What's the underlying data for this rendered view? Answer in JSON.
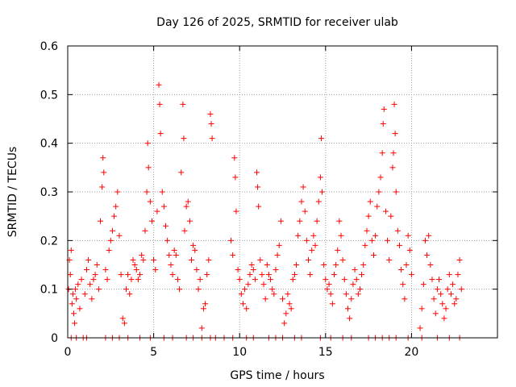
{
  "chart_data": {
    "type": "scatter",
    "title": "Day 126 of 2025, SRMTID for receiver ulab",
    "xlabel": "GPS time / hours",
    "ylabel": "SRMTID / TECUs",
    "xlim": [
      0,
      25
    ],
    "ylim": [
      0,
      0.6
    ],
    "x_ticks": [
      0,
      5,
      10,
      15,
      20
    ],
    "x_tick_labels": [
      "0",
      "5",
      "10",
      "15",
      "20"
    ],
    "y_ticks": [
      0,
      0.1,
      0.2,
      0.3,
      0.4,
      0.5,
      0.6
    ],
    "y_tick_labels": [
      "0",
      "0.1",
      "0.2",
      "0.3",
      "0.4",
      "0.5",
      "0.6"
    ],
    "grid": true,
    "marker": "plus",
    "color": "#ff0000",
    "series": [
      {
        "name": "SRMTID",
        "points": [
          [
            0.05,
            0.1
          ],
          [
            0.1,
            0.16
          ],
          [
            0.15,
            0.13
          ],
          [
            0.2,
            0.18
          ],
          [
            0.25,
            0.07
          ],
          [
            0.3,
            0.09
          ],
          [
            0.35,
            0.05
          ],
          [
            0.4,
            0.03
          ],
          [
            0.45,
            0.1
          ],
          [
            0.5,
            0.08
          ],
          [
            0.6,
            0.11
          ],
          [
            0.7,
            0.06
          ],
          [
            0.8,
            0.12
          ],
          [
            1.0,
            0.09
          ],
          [
            1.1,
            0.14
          ],
          [
            1.2,
            0.16
          ],
          [
            1.3,
            0.11
          ],
          [
            1.4,
            0.08
          ],
          [
            1.5,
            0.12
          ],
          [
            1.6,
            0.13
          ],
          [
            1.7,
            0.15
          ],
          [
            1.8,
            0.1
          ],
          [
            1.9,
            0.24
          ],
          [
            2.0,
            0.31
          ],
          [
            2.05,
            0.37
          ],
          [
            2.1,
            0.34
          ],
          [
            2.2,
            0.14
          ],
          [
            2.3,
            0.12
          ],
          [
            2.4,
            0.18
          ],
          [
            2.5,
            0.2
          ],
          [
            2.6,
            0.22
          ],
          [
            2.7,
            0.25
          ],
          [
            2.8,
            0.27
          ],
          [
            2.9,
            0.3
          ],
          [
            3.0,
            0.21
          ],
          [
            3.1,
            0.13
          ],
          [
            3.2,
            0.04
          ],
          [
            3.3,
            0.03
          ],
          [
            3.4,
            0.1
          ],
          [
            3.5,
            0.13
          ],
          [
            3.6,
            0.09
          ],
          [
            3.7,
            0.12
          ],
          [
            3.8,
            0.16
          ],
          [
            3.9,
            0.15
          ],
          [
            4.0,
            0.14
          ],
          [
            4.1,
            0.12
          ],
          [
            4.2,
            0.13
          ],
          [
            4.3,
            0.17
          ],
          [
            4.4,
            0.16
          ],
          [
            4.5,
            0.22
          ],
          [
            4.6,
            0.3
          ],
          [
            4.65,
            0.4
          ],
          [
            4.7,
            0.35
          ],
          [
            4.8,
            0.28
          ],
          [
            4.9,
            0.24
          ],
          [
            5.0,
            0.16
          ],
          [
            5.1,
            0.14
          ],
          [
            5.2,
            0.26
          ],
          [
            5.3,
            0.52
          ],
          [
            5.35,
            0.48
          ],
          [
            5.4,
            0.42
          ],
          [
            5.5,
            0.3
          ],
          [
            5.6,
            0.27
          ],
          [
            5.7,
            0.23
          ],
          [
            5.8,
            0.2
          ],
          [
            5.9,
            0.17
          ],
          [
            6.0,
            0.15
          ],
          [
            6.1,
            0.13
          ],
          [
            6.2,
            0.18
          ],
          [
            6.3,
            0.17
          ],
          [
            6.4,
            0.12
          ],
          [
            6.5,
            0.1
          ],
          [
            6.6,
            0.34
          ],
          [
            6.7,
            0.48
          ],
          [
            6.75,
            0.41
          ],
          [
            6.8,
            0.22
          ],
          [
            6.9,
            0.27
          ],
          [
            7.0,
            0.28
          ],
          [
            7.1,
            0.24
          ],
          [
            7.2,
            0.16
          ],
          [
            7.3,
            0.19
          ],
          [
            7.4,
            0.18
          ],
          [
            7.5,
            0.14
          ],
          [
            7.6,
            0.1
          ],
          [
            7.7,
            0.12
          ],
          [
            7.8,
            0.02
          ],
          [
            7.9,
            0.06
          ],
          [
            8.0,
            0.07
          ],
          [
            8.1,
            0.13
          ],
          [
            8.2,
            0.16
          ],
          [
            8.3,
            0.46
          ],
          [
            8.35,
            0.44
          ],
          [
            8.4,
            0.41
          ],
          [
            9.5,
            0.2
          ],
          [
            9.6,
            0.17
          ],
          [
            9.7,
            0.37
          ],
          [
            9.75,
            0.33
          ],
          [
            9.8,
            0.26
          ],
          [
            9.9,
            0.14
          ],
          [
            10.0,
            0.12
          ],
          [
            10.1,
            0.09
          ],
          [
            10.2,
            0.07
          ],
          [
            10.3,
            0.1
          ],
          [
            10.4,
            0.06
          ],
          [
            10.5,
            0.11
          ],
          [
            10.6,
            0.13
          ],
          [
            10.7,
            0.15
          ],
          [
            10.8,
            0.14
          ],
          [
            10.9,
            0.12
          ],
          [
            11.0,
            0.34
          ],
          [
            11.05,
            0.31
          ],
          [
            11.1,
            0.27
          ],
          [
            11.2,
            0.16
          ],
          [
            11.3,
            0.13
          ],
          [
            11.4,
            0.11
          ],
          [
            11.5,
            0.08
          ],
          [
            11.6,
            0.15
          ],
          [
            11.7,
            0.13
          ],
          [
            11.8,
            0.12
          ],
          [
            11.9,
            0.1
          ],
          [
            12.0,
            0.09
          ],
          [
            12.1,
            0.14
          ],
          [
            12.2,
            0.17
          ],
          [
            12.3,
            0.19
          ],
          [
            12.4,
            0.24
          ],
          [
            12.5,
            0.08
          ],
          [
            12.6,
            0.03
          ],
          [
            12.7,
            0.05
          ],
          [
            12.8,
            0.09
          ],
          [
            12.9,
            0.07
          ],
          [
            13.0,
            0.06
          ],
          [
            13.1,
            0.12
          ],
          [
            13.2,
            0.13
          ],
          [
            13.3,
            0.15
          ],
          [
            13.4,
            0.21
          ],
          [
            13.5,
            0.24
          ],
          [
            13.6,
            0.28
          ],
          [
            13.7,
            0.31
          ],
          [
            13.8,
            0.26
          ],
          [
            13.9,
            0.2
          ],
          [
            14.0,
            0.16
          ],
          [
            14.1,
            0.13
          ],
          [
            14.2,
            0.18
          ],
          [
            14.3,
            0.21
          ],
          [
            14.4,
            0.19
          ],
          [
            14.5,
            0.24
          ],
          [
            14.6,
            0.28
          ],
          [
            14.7,
            0.33
          ],
          [
            14.75,
            0.41
          ],
          [
            14.8,
            0.3
          ],
          [
            14.9,
            0.15
          ],
          [
            15.0,
            0.12
          ],
          [
            15.1,
            0.1
          ],
          [
            15.2,
            0.11
          ],
          [
            15.3,
            0.09
          ],
          [
            15.4,
            0.07
          ],
          [
            15.5,
            0.13
          ],
          [
            15.6,
            0.15
          ],
          [
            15.7,
            0.18
          ],
          [
            15.8,
            0.24
          ],
          [
            15.9,
            0.21
          ],
          [
            16.0,
            0.16
          ],
          [
            16.1,
            0.12
          ],
          [
            16.2,
            0.09
          ],
          [
            16.3,
            0.06
          ],
          [
            16.4,
            0.04
          ],
          [
            16.5,
            0.08
          ],
          [
            16.6,
            0.11
          ],
          [
            16.7,
            0.14
          ],
          [
            16.8,
            0.12
          ],
          [
            16.9,
            0.09
          ],
          [
            17.0,
            0.1
          ],
          [
            17.1,
            0.13
          ],
          [
            17.2,
            0.15
          ],
          [
            17.3,
            0.19
          ],
          [
            17.4,
            0.22
          ],
          [
            17.5,
            0.25
          ],
          [
            17.6,
            0.28
          ],
          [
            17.7,
            0.2
          ],
          [
            17.8,
            0.17
          ],
          [
            17.9,
            0.21
          ],
          [
            18.0,
            0.27
          ],
          [
            18.1,
            0.3
          ],
          [
            18.2,
            0.33
          ],
          [
            18.3,
            0.38
          ],
          [
            18.35,
            0.44
          ],
          [
            18.4,
            0.47
          ],
          [
            18.5,
            0.26
          ],
          [
            18.6,
            0.2
          ],
          [
            18.7,
            0.16
          ],
          [
            18.8,
            0.25
          ],
          [
            18.9,
            0.35
          ],
          [
            18.95,
            0.38
          ],
          [
            19.0,
            0.48
          ],
          [
            19.05,
            0.42
          ],
          [
            19.1,
            0.3
          ],
          [
            19.2,
            0.22
          ],
          [
            19.3,
            0.19
          ],
          [
            19.4,
            0.14
          ],
          [
            19.5,
            0.11
          ],
          [
            19.6,
            0.08
          ],
          [
            19.7,
            0.15
          ],
          [
            19.8,
            0.21
          ],
          [
            19.9,
            0.18
          ],
          [
            20.0,
            0.13
          ],
          [
            20.5,
            0.02
          ],
          [
            20.6,
            0.06
          ],
          [
            20.7,
            0.11
          ],
          [
            20.8,
            0.2
          ],
          [
            20.9,
            0.17
          ],
          [
            21.0,
            0.21
          ],
          [
            21.1,
            0.15
          ],
          [
            21.2,
            0.12
          ],
          [
            21.3,
            0.08
          ],
          [
            21.4,
            0.05
          ],
          [
            21.5,
            0.1
          ],
          [
            21.6,
            0.12
          ],
          [
            21.7,
            0.09
          ],
          [
            21.8,
            0.07
          ],
          [
            21.9,
            0.04
          ],
          [
            22.0,
            0.06
          ],
          [
            22.1,
            0.1
          ],
          [
            22.2,
            0.13
          ],
          [
            22.3,
            0.09
          ],
          [
            22.4,
            0.11
          ],
          [
            22.5,
            0.07
          ],
          [
            22.6,
            0.08
          ],
          [
            22.7,
            0.13
          ],
          [
            22.8,
            0.16
          ],
          [
            22.9,
            0.1
          ],
          [
            0.2,
            0.0
          ],
          [
            0.5,
            0.0
          ],
          [
            0.9,
            0.0
          ],
          [
            1.1,
            0.0
          ],
          [
            2.2,
            0.0
          ],
          [
            2.6,
            0.0
          ],
          [
            3.0,
            0.0
          ],
          [
            3.5,
            0.0
          ],
          [
            4.2,
            0.0
          ],
          [
            4.8,
            0.0
          ],
          [
            5.6,
            0.0
          ],
          [
            6.1,
            0.0
          ],
          [
            6.9,
            0.0
          ],
          [
            7.3,
            0.0
          ],
          [
            7.8,
            0.0
          ],
          [
            8.3,
            0.0
          ],
          [
            8.6,
            0.0
          ],
          [
            9.1,
            0.0
          ],
          [
            9.6,
            0.0
          ],
          [
            10.4,
            0.0
          ],
          [
            10.8,
            0.0
          ],
          [
            11.7,
            0.0
          ],
          [
            12.1,
            0.0
          ],
          [
            12.5,
            0.0
          ],
          [
            13.2,
            0.0
          ],
          [
            13.6,
            0.0
          ],
          [
            14.7,
            0.0
          ],
          [
            15.3,
            0.0
          ],
          [
            16.0,
            0.0
          ],
          [
            16.5,
            0.0
          ],
          [
            17.5,
            0.0
          ],
          [
            17.9,
            0.0
          ],
          [
            18.3,
            0.0
          ],
          [
            18.7,
            0.0
          ],
          [
            19.1,
            0.0
          ],
          [
            19.8,
            0.0
          ],
          [
            20.6,
            0.0
          ],
          [
            21.5,
            0.0
          ],
          [
            22.2,
            0.0
          ],
          [
            22.8,
            0.0
          ]
        ]
      }
    ]
  }
}
